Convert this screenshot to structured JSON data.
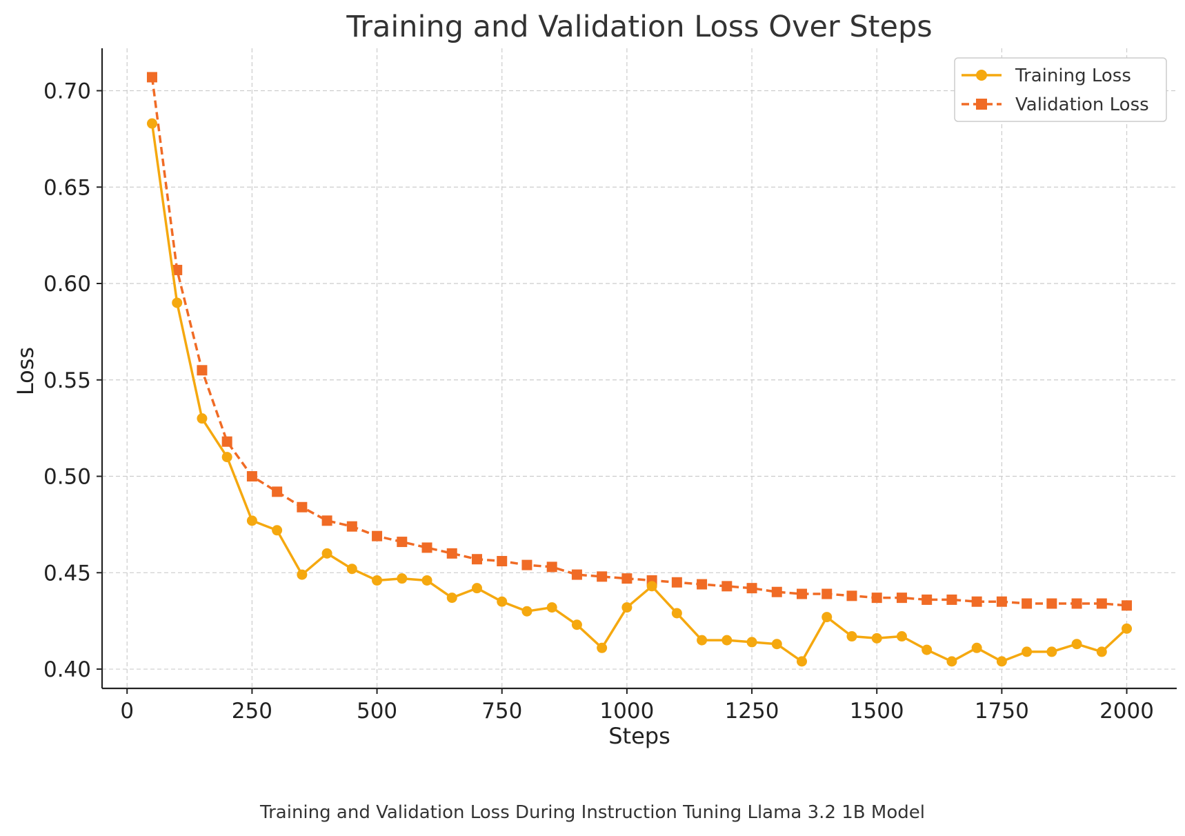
{
  "chart_data": {
    "type": "line",
    "title": "Training and Validation Loss Over Steps",
    "xlabel": "Steps",
    "ylabel": "Loss",
    "xlim": [
      -50,
      2100
    ],
    "ylim": [
      0.39,
      0.722
    ],
    "xticks": [
      0,
      250,
      500,
      750,
      1000,
      1250,
      1500,
      1750,
      2000
    ],
    "yticks": [
      0.4,
      0.45,
      0.5,
      0.55,
      0.6,
      0.65,
      0.7
    ],
    "ytick_labels": [
      "0.40",
      "0.45",
      "0.50",
      "0.55",
      "0.60",
      "0.65",
      "0.70"
    ],
    "grid": true,
    "legend_position": "top-right",
    "x": [
      50,
      100,
      150,
      200,
      250,
      300,
      350,
      400,
      450,
      500,
      550,
      600,
      650,
      700,
      750,
      800,
      850,
      900,
      950,
      1000,
      1050,
      1100,
      1150,
      1200,
      1250,
      1300,
      1350,
      1400,
      1450,
      1500,
      1550,
      1600,
      1650,
      1700,
      1750,
      1800,
      1850,
      1900,
      1950,
      2000
    ],
    "series": [
      {
        "name": "Training Loss",
        "color": "#f5a80f",
        "line_style": "solid",
        "marker": "circle",
        "values": [
          0.683,
          0.59,
          0.53,
          0.51,
          0.477,
          0.472,
          0.449,
          0.46,
          0.452,
          0.446,
          0.447,
          0.446,
          0.437,
          0.442,
          0.435,
          0.43,
          0.432,
          0.423,
          0.411,
          0.432,
          0.443,
          0.429,
          0.415,
          0.415,
          0.414,
          0.413,
          0.404,
          0.427,
          0.417,
          0.416,
          0.417,
          0.41,
          0.404,
          0.411,
          0.404,
          0.409,
          0.409,
          0.413,
          0.409,
          0.421
        ]
      },
      {
        "name": "Validation Loss",
        "color": "#f06b25",
        "line_style": "dashed",
        "marker": "square",
        "values": [
          0.707,
          0.607,
          0.555,
          0.518,
          0.5,
          0.492,
          0.484,
          0.477,
          0.474,
          0.469,
          0.466,
          0.463,
          0.46,
          0.457,
          0.456,
          0.454,
          0.453,
          0.449,
          0.448,
          0.447,
          0.446,
          0.445,
          0.444,
          0.443,
          0.442,
          0.44,
          0.439,
          0.439,
          0.438,
          0.437,
          0.437,
          0.436,
          0.436,
          0.435,
          0.435,
          0.434,
          0.434,
          0.434,
          0.434,
          0.433
        ]
      }
    ]
  },
  "caption": "Training and Validation Loss During Instruction Tuning Llama 3.2 1B Model"
}
